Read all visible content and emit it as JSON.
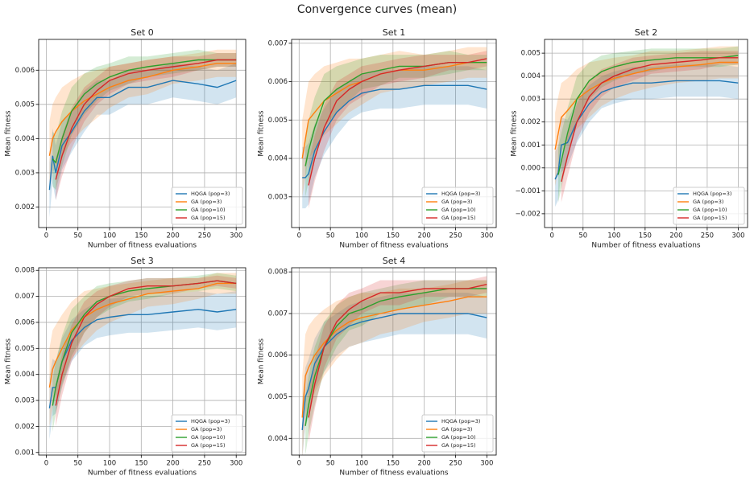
{
  "title": "Convergence curves (mean)",
  "chart_data": [
    {
      "type": "line",
      "title": "Set 0",
      "xlabel": "Number of fitness evaluations",
      "ylabel": "Mean fitness",
      "x": [
        5,
        10,
        15,
        25,
        40,
        60,
        80,
        100,
        130,
        160,
        200,
        240,
        270,
        300
      ],
      "xlim": [
        -12,
        315
      ],
      "xticks": [
        0,
        50,
        100,
        150,
        200,
        250,
        300
      ],
      "ylim": [
        0.0014,
        0.0069
      ],
      "yticks": [
        0.002,
        0.003,
        0.004,
        0.005,
        0.006
      ],
      "grid": true,
      "legend": "lower right",
      "series": [
        {
          "name": "HQGA (pop=3)",
          "color": "#1f77b4",
          "values": [
            0.0025,
            0.0035,
            0.003,
            0.0038,
            0.0042,
            0.0048,
            0.0052,
            0.0052,
            0.0055,
            0.0055,
            0.0057,
            0.0056,
            0.0055,
            0.0057
          ],
          "std": [
            0.0008,
            0.0008,
            0.0008,
            0.0007,
            0.0006,
            0.0006,
            0.0005,
            0.0005,
            0.0005,
            0.0005,
            0.0005,
            0.0005,
            0.0005,
            0.0005
          ]
        },
        {
          "name": "GA (pop=3)",
          "color": "#ff7f0e",
          "values": [
            0.0035,
            0.004,
            0.0042,
            0.0045,
            0.0048,
            0.0051,
            0.0053,
            0.0055,
            0.0057,
            0.0058,
            0.006,
            0.0061,
            0.0062,
            0.0062
          ],
          "std": [
            0.001,
            0.001,
            0.001,
            0.001,
            0.0009,
            0.0008,
            0.0007,
            0.0006,
            0.0005,
            0.0005,
            0.0004,
            0.0004,
            0.0004,
            0.0004
          ]
        },
        {
          "name": "GA (pop=10)",
          "color": "#2ca02c",
          "values": [
            null,
            0.0034,
            0.0033,
            0.004,
            0.0048,
            0.0053,
            0.0056,
            0.0058,
            0.006,
            0.0061,
            0.0062,
            0.0063,
            0.0063,
            0.0063
          ],
          "std": [
            null,
            0.0008,
            0.0008,
            0.0008,
            0.0007,
            0.0006,
            0.0005,
            0.0004,
            0.0004,
            0.0003,
            0.0003,
            0.0003,
            0.0002,
            0.0002
          ]
        },
        {
          "name": "GA (pop=15)",
          "color": "#d62728",
          "values": [
            null,
            null,
            0.0028,
            0.0035,
            0.0043,
            0.005,
            0.0054,
            0.0057,
            0.0059,
            0.006,
            0.0061,
            0.0062,
            0.0063,
            0.0063
          ],
          "std": [
            null,
            null,
            0.0006,
            0.0006,
            0.0006,
            0.0005,
            0.0004,
            0.0004,
            0.0003,
            0.0003,
            0.0003,
            0.0002,
            0.0002,
            0.0002
          ]
        }
      ]
    },
    {
      "type": "line",
      "title": "Set 1",
      "xlabel": "Number of fitness evaluations",
      "ylabel": "Mean fitness",
      "x": [
        5,
        10,
        15,
        25,
        40,
        60,
        80,
        100,
        130,
        160,
        200,
        240,
        270,
        300
      ],
      "xlim": [
        -12,
        315
      ],
      "xticks": [
        0,
        50,
        100,
        150,
        200,
        250,
        300
      ],
      "ylim": [
        0.0022,
        0.0071
      ],
      "yticks": [
        0.003,
        0.004,
        0.005,
        0.006,
        0.007
      ],
      "grid": true,
      "legend": "lower right",
      "series": [
        {
          "name": "HQGA (pop=3)",
          "color": "#1f77b4",
          "values": [
            0.0035,
            0.0035,
            0.0036,
            0.0042,
            0.0047,
            0.0052,
            0.0055,
            0.0057,
            0.0058,
            0.0058,
            0.0059,
            0.0059,
            0.0059,
            0.0058
          ],
          "std": [
            0.0008,
            0.0008,
            0.0008,
            0.0007,
            0.0006,
            0.0006,
            0.0005,
            0.0005,
            0.0005,
            0.0005,
            0.0005,
            0.0005,
            0.0005,
            0.0005
          ]
        },
        {
          "name": "GA (pop=3)",
          "color": "#ff7f0e",
          "values": [
            0.004,
            0.0045,
            0.005,
            0.0052,
            0.0055,
            0.0057,
            0.0059,
            0.006,
            0.0062,
            0.0063,
            0.0063,
            0.0064,
            0.0065,
            0.0065
          ],
          "std": [
            0.001,
            0.001,
            0.001,
            0.001,
            0.0009,
            0.0008,
            0.0007,
            0.0006,
            0.0005,
            0.0005,
            0.0004,
            0.0004,
            0.0004,
            0.0004
          ]
        },
        {
          "name": "GA (pop=10)",
          "color": "#2ca02c",
          "values": [
            null,
            0.0038,
            0.0042,
            0.0048,
            0.0055,
            0.0058,
            0.006,
            0.0062,
            0.0063,
            0.0064,
            0.0064,
            0.0065,
            0.0065,
            0.0065
          ],
          "std": [
            null,
            0.0008,
            0.0008,
            0.0008,
            0.0007,
            0.0006,
            0.0005,
            0.0004,
            0.0004,
            0.0003,
            0.0003,
            0.0003,
            0.0002,
            0.0002
          ]
        },
        {
          "name": "GA (pop=15)",
          "color": "#d62728",
          "values": [
            null,
            null,
            0.0033,
            0.004,
            0.0048,
            0.0055,
            0.0058,
            0.006,
            0.0062,
            0.0063,
            0.0064,
            0.0065,
            0.0065,
            0.0066
          ],
          "std": [
            null,
            null,
            0.0006,
            0.0006,
            0.0006,
            0.0005,
            0.0004,
            0.0004,
            0.0003,
            0.0003,
            0.0003,
            0.0002,
            0.0002,
            0.0002
          ]
        }
      ]
    },
    {
      "type": "line",
      "title": "Set 2",
      "xlabel": "Number of fitness evaluations",
      "ylabel": "Mean fitness",
      "x": [
        5,
        10,
        15,
        25,
        40,
        60,
        80,
        100,
        130,
        160,
        200,
        240,
        270,
        300
      ],
      "xlim": [
        -12,
        315
      ],
      "xticks": [
        0,
        50,
        100,
        150,
        200,
        250,
        300
      ],
      "ylim": [
        -0.0026,
        0.0056
      ],
      "yticks": [
        {
          "value": -0.002,
          "label": "−0.002"
        },
        {
          "value": -0.001,
          "label": "−0.001"
        },
        {
          "value": 0,
          "label": "0.000"
        },
        0.001,
        0.002,
        0.003,
        0.004,
        0.005
      ],
      "grid": true,
      "legend": "lower right",
      "series": [
        {
          "name": "HQGA (pop=3)",
          "color": "#1f77b4",
          "values": [
            -0.0005,
            -0.0002,
            0.001,
            0.0011,
            0.002,
            0.0028,
            0.0033,
            0.0035,
            0.0037,
            0.0037,
            0.0038,
            0.0038,
            0.0038,
            0.0037
          ],
          "std": [
            0.0012,
            0.0012,
            0.0012,
            0.001,
            0.0009,
            0.0008,
            0.0007,
            0.0007,
            0.0007,
            0.0007,
            0.0007,
            0.0007,
            0.0007,
            0.0007
          ]
        },
        {
          "name": "GA (pop=3)",
          "color": "#ff7f0e",
          "values": [
            0.0008,
            0.0015,
            0.0022,
            0.0025,
            0.003,
            0.0034,
            0.0037,
            0.0039,
            0.0041,
            0.0043,
            0.0044,
            0.0045,
            0.0046,
            0.0046
          ],
          "std": [
            0.0016,
            0.0016,
            0.0015,
            0.0014,
            0.0013,
            0.0012,
            0.001,
            0.0009,
            0.0008,
            0.0008,
            0.0007,
            0.0007,
            0.0007,
            0.0007
          ]
        },
        {
          "name": "GA (pop=10)",
          "color": "#2ca02c",
          "values": [
            null,
            -0.0003,
            0.0003,
            0.0015,
            0.003,
            0.0038,
            0.0042,
            0.0044,
            0.0046,
            0.0047,
            0.0048,
            0.0048,
            0.0048,
            0.0049
          ],
          "std": [
            null,
            0.0012,
            0.0012,
            0.0011,
            0.001,
            0.0008,
            0.0007,
            0.0006,
            0.0005,
            0.0005,
            0.0004,
            0.0004,
            0.0004,
            0.0004
          ]
        },
        {
          "name": "GA (pop=15)",
          "color": "#d62728",
          "values": [
            null,
            null,
            -0.0006,
            0.0005,
            0.002,
            0.0031,
            0.0037,
            0.004,
            0.0043,
            0.0045,
            0.0046,
            0.0047,
            0.0048,
            0.0048
          ],
          "std": [
            null,
            null,
            0.0009,
            0.0009,
            0.0008,
            0.0007,
            0.0006,
            0.0005,
            0.0005,
            0.0004,
            0.0004,
            0.0004,
            0.0003,
            0.0003
          ]
        }
      ]
    },
    {
      "type": "line",
      "title": "Set 3",
      "xlabel": "Number of fitness evaluations",
      "ylabel": "Mean fitness",
      "x": [
        5,
        10,
        15,
        25,
        40,
        60,
        80,
        100,
        130,
        160,
        200,
        240,
        270,
        300
      ],
      "xlim": [
        -12,
        315
      ],
      "xticks": [
        0,
        50,
        100,
        150,
        200,
        250,
        300
      ],
      "ylim": [
        0.0009,
        0.0081
      ],
      "yticks": [
        0.001,
        0.002,
        0.003,
        0.004,
        0.005,
        0.006,
        0.007,
        0.008
      ],
      "grid": true,
      "legend": "lower right",
      "series": [
        {
          "name": "HQGA (pop=3)",
          "color": "#1f77b4",
          "values": [
            0.0027,
            0.0035,
            0.0035,
            0.0045,
            0.0053,
            0.0058,
            0.0061,
            0.0062,
            0.0063,
            0.0063,
            0.0064,
            0.0065,
            0.0064,
            0.0065
          ],
          "std": [
            0.0012,
            0.0011,
            0.001,
            0.0009,
            0.0008,
            0.0007,
            0.0007,
            0.0007,
            0.0007,
            0.0007,
            0.0007,
            0.0007,
            0.0007,
            0.0007
          ]
        },
        {
          "name": "GA (pop=3)",
          "color": "#ff7f0e",
          "values": [
            0.0035,
            0.0042,
            0.0045,
            0.005,
            0.0057,
            0.0062,
            0.0065,
            0.0067,
            0.0069,
            0.0071,
            0.0072,
            0.0073,
            0.0075,
            0.0075
          ],
          "std": [
            0.0015,
            0.0015,
            0.0014,
            0.0013,
            0.0011,
            0.001,
            0.0008,
            0.0007,
            0.0006,
            0.0005,
            0.0005,
            0.0004,
            0.0004,
            0.0004
          ]
        },
        {
          "name": "GA (pop=10)",
          "color": "#2ca02c",
          "values": [
            null,
            0.0028,
            0.0035,
            0.0045,
            0.0056,
            0.0063,
            0.0068,
            0.007,
            0.0072,
            0.0073,
            0.0074,
            0.0075,
            0.0076,
            0.0075
          ],
          "std": [
            null,
            0.001,
            0.001,
            0.001,
            0.0009,
            0.0007,
            0.0006,
            0.0005,
            0.0004,
            0.0004,
            0.0003,
            0.0003,
            0.0003,
            0.0003
          ]
        },
        {
          "name": "GA (pop=15)",
          "color": "#d62728",
          "values": [
            null,
            null,
            0.0028,
            0.004,
            0.0052,
            0.0062,
            0.0067,
            0.007,
            0.0073,
            0.0074,
            0.0074,
            0.0075,
            0.0076,
            0.0075
          ],
          "std": [
            null,
            null,
            0.0008,
            0.0008,
            0.0007,
            0.0006,
            0.0005,
            0.0004,
            0.0003,
            0.0003,
            0.0003,
            0.0002,
            0.0002,
            0.0002
          ]
        }
      ]
    },
    {
      "type": "line",
      "title": "Set 4",
      "xlabel": "Number of fitness evaluations",
      "ylabel": "Mean fitness",
      "x": [
        5,
        10,
        15,
        25,
        40,
        60,
        80,
        100,
        130,
        160,
        200,
        240,
        270,
        300
      ],
      "xlim": [
        -12,
        315
      ],
      "xticks": [
        0,
        50,
        100,
        150,
        200,
        250,
        300
      ],
      "ylim": [
        0.0036,
        0.0081
      ],
      "yticks": [
        0.004,
        0.005,
        0.006,
        0.007,
        0.008
      ],
      "grid": true,
      "legend": "lower right",
      "series": [
        {
          "name": "HQGA (pop=3)",
          "color": "#1f77b4",
          "values": [
            0.0042,
            0.005,
            0.0052,
            0.0058,
            0.0062,
            0.0065,
            0.0067,
            0.0068,
            0.0069,
            0.007,
            0.007,
            0.007,
            0.007,
            0.0069
          ],
          "std": [
            0.0007,
            0.0007,
            0.0007,
            0.0006,
            0.0006,
            0.0005,
            0.0005,
            0.0005,
            0.0005,
            0.0005,
            0.0005,
            0.0005,
            0.0005,
            0.0005
          ]
        },
        {
          "name": "GA (pop=3)",
          "color": "#ff7f0e",
          "values": [
            0.0045,
            0.0055,
            0.0057,
            0.006,
            0.0063,
            0.0066,
            0.0068,
            0.0069,
            0.007,
            0.0071,
            0.0072,
            0.0073,
            0.0074,
            0.0074
          ],
          "std": [
            0.001,
            0.001,
            0.001,
            0.0009,
            0.0008,
            0.0007,
            0.0006,
            0.0006,
            0.0005,
            0.0005,
            0.0004,
            0.0004,
            0.0004,
            0.0004
          ]
        },
        {
          "name": "GA (pop=10)",
          "color": "#2ca02c",
          "values": [
            null,
            0.0043,
            0.0048,
            0.0055,
            0.0062,
            0.0067,
            0.007,
            0.0071,
            0.0073,
            0.0074,
            0.0075,
            0.0076,
            0.0076,
            0.0076
          ],
          "std": [
            null,
            0.0007,
            0.0007,
            0.0007,
            0.0006,
            0.0005,
            0.0004,
            0.0004,
            0.0003,
            0.0003,
            0.0003,
            0.0002,
            0.0002,
            0.0002
          ]
        },
        {
          "name": "GA (pop=15)",
          "color": "#d62728",
          "values": [
            null,
            null,
            0.0045,
            0.0053,
            0.0062,
            0.0068,
            0.0071,
            0.0073,
            0.0075,
            0.0075,
            0.0076,
            0.0076,
            0.0076,
            0.0077
          ],
          "std": [
            null,
            null,
            0.0006,
            0.0006,
            0.0005,
            0.0004,
            0.0004,
            0.0003,
            0.0003,
            0.0003,
            0.0002,
            0.0002,
            0.0002,
            0.0002
          ]
        }
      ]
    }
  ]
}
